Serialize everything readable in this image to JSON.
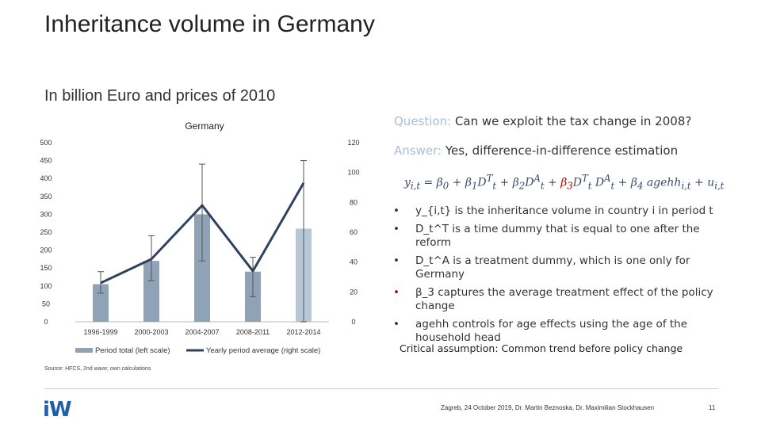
{
  "page": {
    "title": "Inheritance volume in Germany",
    "subtitle": "In billion Euro and prices of 2010",
    "question_label": "Question:",
    "question_text": "Can we exploit the tax change in 2008?",
    "answer_label": "Answer:",
    "answer_text": "Yes, difference-in-difference estimation",
    "equation": {
      "part1": "y",
      "sub1": "i,t",
      "part2": " = β",
      "sub2": "0",
      "part3": " + β",
      "sub3": "1",
      "part4": "D",
      "sup4": "T",
      "sub4": "t",
      "part5": " + β",
      "sub5": "2",
      "part6": "D",
      "sup6": "A",
      "sub6": "t",
      "part7": " + ",
      "beta3": "β",
      "sub7": "3",
      "part8": "D",
      "sup8": "T",
      "sub8": "t",
      "part9": " D",
      "sup9": "A",
      "sub9": "t",
      "part10": " + β",
      "sub10": "4",
      "part11": " agehh",
      "sub11": "i,t",
      "part12": " + u",
      "sub12": "i,t"
    },
    "bullets": [
      "y_{i,t} is the inheritance volume in country i in period t",
      "D_t^T is a time dummy that is equal to one after the reform",
      "D_t^A is a treatment dummy, which is one only for Germany",
      "β_3 captures the average treatment effect of the policy change",
      "agehh controls for age effects using the age of the household head"
    ],
    "bullet_mark": "•",
    "assumption": "Critical assumption: Common trend before policy change",
    "source": "Source: HFCS, 2nd wave; own calculations",
    "logo": "iW",
    "footer": "Zagreb, 24 October 2019, Dr. Martin Beznoska, Dr. Maximilian Stockhausen",
    "page_number": "11"
  },
  "chart_data": {
    "type": "bar",
    "title": "Germany",
    "categories": [
      "1996-1999",
      "2000-2003",
      "2004-2007",
      "2008-2011",
      "2012-2014"
    ],
    "series": [
      {
        "name": "Period total (left scale)",
        "type": "bar",
        "axis": "left",
        "values": [
          105,
          170,
          300,
          140,
          260
        ],
        "error_low": [
          80,
          115,
          170,
          70,
          0
        ],
        "error_high": [
          140,
          240,
          440,
          180,
          450
        ]
      },
      {
        "name": "Yearly period average (right scale)",
        "type": "line",
        "axis": "right",
        "values": [
          26,
          42,
          78,
          34,
          93
        ]
      }
    ],
    "left_axis": {
      "min": 0,
      "max": 500,
      "ticks": [
        0,
        50,
        100,
        150,
        200,
        250,
        300,
        350,
        400,
        450,
        500
      ]
    },
    "right_axis": {
      "min": 0,
      "max": 120,
      "ticks": [
        0,
        20,
        40,
        60,
        80,
        100,
        120
      ]
    },
    "bar_colors": [
      "#8fa2b6",
      "#8fa2b6",
      "#8fa2b6",
      "#8fa2b6",
      "#b6c8d8"
    ],
    "line_color": "#2f435e",
    "legend_position": "bottom"
  }
}
